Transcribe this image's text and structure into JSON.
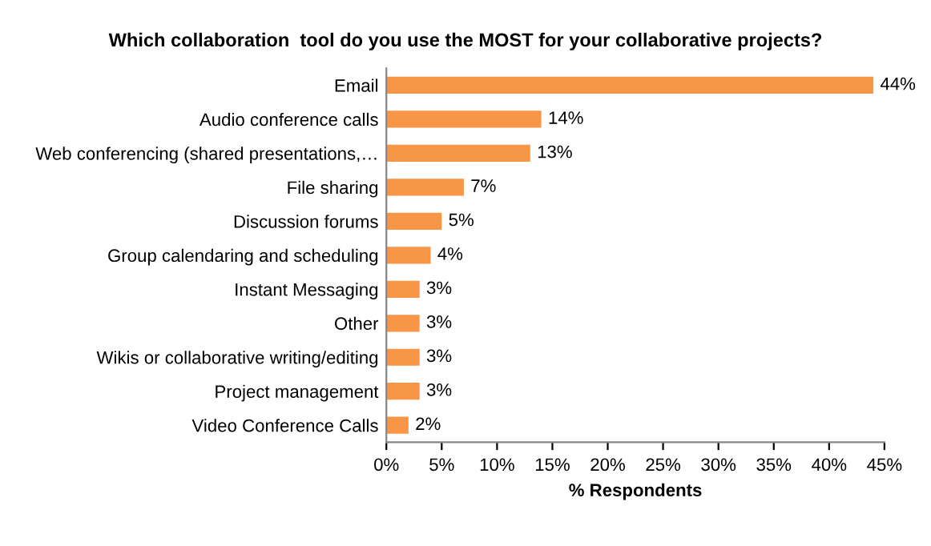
{
  "chart_data": {
    "type": "bar",
    "orientation": "horizontal",
    "title": "Which collaboration  tool do you use the MOST for your collaborative projects?",
    "xlabel": "% Respondents",
    "categories": [
      "Email",
      "Audio conference calls",
      "Web conferencing (shared presentations,…",
      "File sharing",
      "Discussion forums",
      "Group calendaring and scheduling",
      "Instant Messaging",
      "Other",
      "Wikis or collaborative writing/editing",
      "Project management",
      "Video Conference Calls"
    ],
    "values": [
      44,
      14,
      13,
      7,
      5,
      4,
      3,
      3,
      3,
      3,
      2
    ],
    "value_labels": [
      "44%",
      "14%",
      "13%",
      "7%",
      "5%",
      "4%",
      "3%",
      "3%",
      "3%",
      "3%",
      "2%"
    ],
    "color": "#f79646",
    "xlim": [
      0,
      45
    ],
    "xticks": [
      {
        "value": 0,
        "label": "0%"
      },
      {
        "value": 5,
        "label": "5%"
      },
      {
        "value": 10,
        "label": "10%"
      },
      {
        "value": 15,
        "label": "15%"
      },
      {
        "value": 20,
        "label": "20%"
      },
      {
        "value": 25,
        "label": "25%"
      },
      {
        "value": 30,
        "label": "30%"
      },
      {
        "value": 35,
        "label": "35%"
      },
      {
        "value": 40,
        "label": "40%"
      },
      {
        "value": 45,
        "label": "45%"
      }
    ],
    "grid": false,
    "legend": false
  }
}
